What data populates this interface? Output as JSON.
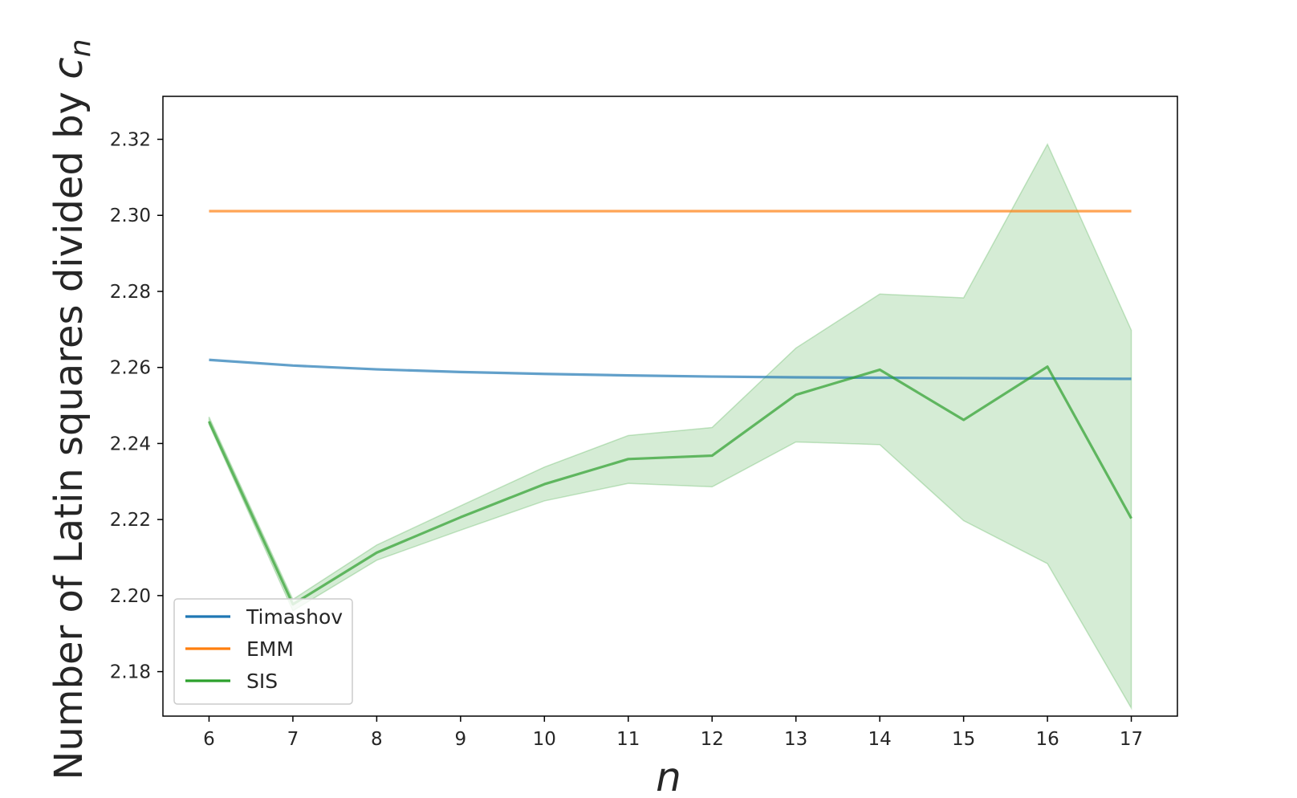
{
  "chart_data": {
    "type": "line",
    "xlabel": "n",
    "ylabel": "Number of Latin squares divided by ",
    "ylabel_math": "c",
    "ylabel_sub": "n",
    "x": [
      6,
      7,
      8,
      9,
      10,
      11,
      12,
      13,
      14,
      15,
      16,
      17
    ],
    "xticks": [
      "6",
      "7",
      "8",
      "9",
      "10",
      "11",
      "12",
      "13",
      "14",
      "15",
      "16",
      "17"
    ],
    "xlim": [
      5.45,
      17.55
    ],
    "yticks": [
      "2.18",
      "2.20",
      "2.22",
      "2.24",
      "2.26",
      "2.28",
      "2.30",
      "2.32"
    ],
    "ytick_values": [
      2.18,
      2.2,
      2.22,
      2.24,
      2.26,
      2.28,
      2.3,
      2.32
    ],
    "ylim": [
      2.1683,
      2.3313
    ],
    "grid": false,
    "legend_position": "lower-left",
    "series": [
      {
        "name": "Timashov",
        "color": "#1f77b4",
        "values": [
          2.262,
          2.2605,
          2.2595,
          2.2588,
          2.2583,
          2.2579,
          2.2576,
          2.2574,
          2.2573,
          2.2572,
          2.2571,
          2.257
        ]
      },
      {
        "name": "EMM",
        "color": "#ff7f0e",
        "values": [
          2.3011,
          2.3011,
          2.3011,
          2.3011,
          2.3011,
          2.3011,
          2.3011,
          2.3011,
          2.3011,
          2.3011,
          2.3011,
          2.3011
        ]
      },
      {
        "name": "SIS",
        "color": "#2ca02c",
        "values": [
          2.2458,
          2.1977,
          2.2113,
          2.2206,
          2.2293,
          2.2359,
          2.2368,
          2.2528,
          2.2594,
          2.2462,
          2.2602,
          2.2203
        ],
        "band_lower": [
          2.245,
          2.196,
          2.2093,
          2.2172,
          2.2249,
          2.2295,
          2.2286,
          2.2404,
          2.2397,
          2.2197,
          2.2084,
          2.1704
        ],
        "band_upper": [
          2.247,
          2.199,
          2.2133,
          2.2236,
          2.2338,
          2.2421,
          2.2442,
          2.2651,
          2.2793,
          2.2783,
          2.3187,
          2.2698
        ]
      }
    ]
  }
}
